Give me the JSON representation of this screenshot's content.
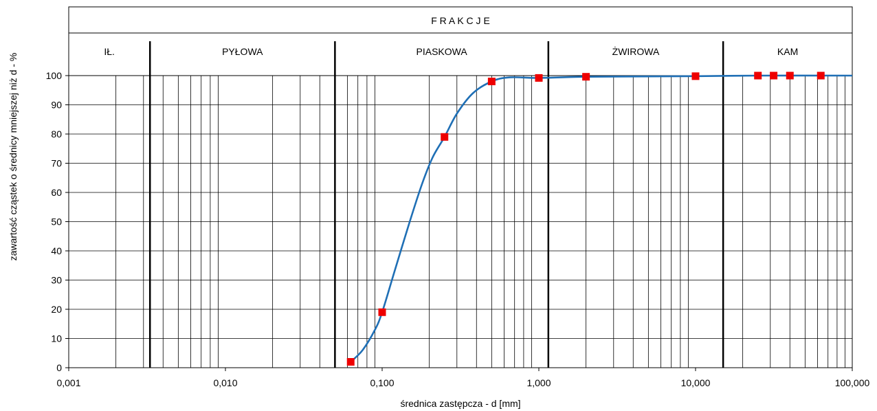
{
  "chart_data": {
    "type": "scatter",
    "xscale": "log",
    "xlim": [
      0.001,
      100
    ],
    "ylim": [
      0,
      100
    ],
    "xlabel": "średnica zastępcza - d [mm]",
    "ylabel": "zawartość cząstek o średnicy mniejszej niż d - %",
    "x_tick_values": [
      0.001,
      0.01,
      0.1,
      1,
      10,
      100
    ],
    "x_tick_labels": [
      "0,001",
      "0,010",
      "0,100",
      "1,000",
      "10,000",
      "100,000"
    ],
    "y_ticks": [
      0,
      10,
      20,
      30,
      40,
      50,
      60,
      70,
      80,
      90,
      100
    ],
    "grid": true,
    "header_title": "F R A K C J E",
    "fractions": [
      {
        "label": "IŁ.",
        "from": 0.001,
        "to": 0.0033
      },
      {
        "label": "PYŁOWA",
        "from": 0.0033,
        "to": 0.05
      },
      {
        "label": "PIASKOWA",
        "from": 0.05,
        "to": 1.15
      },
      {
        "label": "ŻWIROWA",
        "from": 1.15,
        "to": 15
      },
      {
        "label": "KAM",
        "from": 15,
        "to": 100
      }
    ],
    "points": [
      {
        "x": 0.063,
        "y": 2
      },
      {
        "x": 0.1,
        "y": 19
      },
      {
        "x": 0.25,
        "y": 79
      },
      {
        "x": 0.5,
        "y": 98
      },
      {
        "x": 1,
        "y": 99.2
      },
      {
        "x": 2,
        "y": 99.6
      },
      {
        "x": 10,
        "y": 99.8
      },
      {
        "x": 25,
        "y": 100
      },
      {
        "x": 31.5,
        "y": 100
      },
      {
        "x": 40,
        "y": 100
      },
      {
        "x": 63,
        "y": 100
      }
    ],
    "curve": [
      [
        0.063,
        2
      ],
      [
        0.075,
        6
      ],
      [
        0.09,
        13
      ],
      [
        0.1,
        19
      ],
      [
        0.12,
        33
      ],
      [
        0.15,
        50
      ],
      [
        0.18,
        63
      ],
      [
        0.21,
        72
      ],
      [
        0.25,
        79
      ],
      [
        0.3,
        87
      ],
      [
        0.38,
        94
      ],
      [
        0.5,
        98
      ],
      [
        0.65,
        99.4
      ],
      [
        1,
        99.2
      ],
      [
        2,
        99.6
      ],
      [
        10,
        99.8
      ],
      [
        25,
        100
      ],
      [
        100,
        100
      ]
    ],
    "colors": {
      "curve": "#1f6fb5",
      "marker": "#ee0000",
      "grid": "#000000"
    }
  }
}
